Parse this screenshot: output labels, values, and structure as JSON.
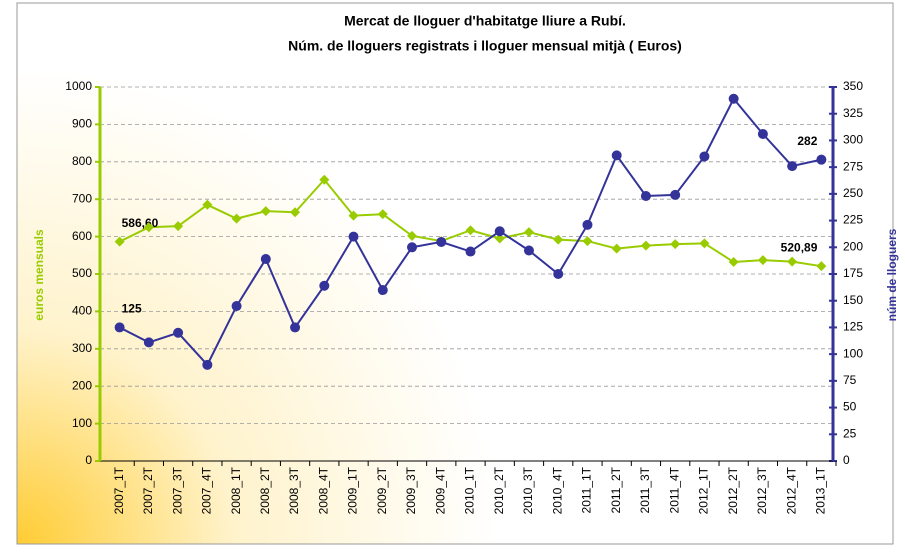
{
  "chart_data": {
    "type": "line",
    "title": "Mercat de lloguer d'habitatge lliure a Rubí.",
    "subtitle": "Núm. de lloguers registrats i lloguer mensual mitjà ( Euros)",
    "ylabel": "euros mensuals",
    "y2label": "núm de lloguers",
    "categories": [
      "2007_1T",
      "2007_2T",
      "2007_3T",
      "2007_4T",
      "2008_1T",
      "2008_2T",
      "2008_3T",
      "2008_4T",
      "2009_1T",
      "2009_2T",
      "2009_3T",
      "2009_4T",
      "2010_1T",
      "2010_2T",
      "2010_3T",
      "2010_4T",
      "2011_1T",
      "2011_2T",
      "2011_3T",
      "2011_4T",
      "2012_1T",
      "2012_2T",
      "2012_3T",
      "2012_4T",
      "2013_1T"
    ],
    "series": [
      {
        "name": "euros mensuals",
        "color": "#99cc00",
        "marker": "diamond",
        "axis": "y",
        "values": [
          586.6,
          625,
          628,
          685,
          648,
          668,
          665,
          752,
          656,
          660,
          602,
          588,
          617,
          595,
          612,
          592,
          588,
          568,
          576,
          580,
          582,
          532,
          537,
          533,
          520.89
        ],
        "value_labels": [
          "586,60",
          null,
          null,
          null,
          null,
          null,
          null,
          null,
          null,
          null,
          null,
          null,
          null,
          null,
          null,
          null,
          null,
          null,
          null,
          null,
          null,
          null,
          null,
          null,
          "520,89"
        ]
      },
      {
        "name": "núm de lloguers",
        "color": "#333399",
        "marker": "circle",
        "axis": "y2",
        "values": [
          125,
          111,
          120,
          90,
          145,
          189,
          125,
          164,
          210,
          160,
          200,
          205,
          196,
          215,
          197,
          175,
          221,
          286,
          248,
          249,
          285,
          339,
          306,
          276,
          282
        ],
        "value_labels": [
          "125",
          null,
          null,
          null,
          null,
          null,
          null,
          null,
          null,
          null,
          null,
          null,
          null,
          null,
          null,
          null,
          null,
          null,
          null,
          null,
          null,
          null,
          null,
          null,
          "282"
        ]
      }
    ],
    "ylim": [
      0,
      1000
    ],
    "yticks": [
      0,
      100,
      200,
      300,
      400,
      500,
      600,
      700,
      800,
      900,
      1000
    ],
    "y2lim": [
      0,
      350
    ],
    "y2ticks": [
      0,
      25,
      50,
      75,
      100,
      125,
      150,
      175,
      200,
      225,
      250,
      275,
      300,
      325,
      350
    ],
    "grid": true
  }
}
